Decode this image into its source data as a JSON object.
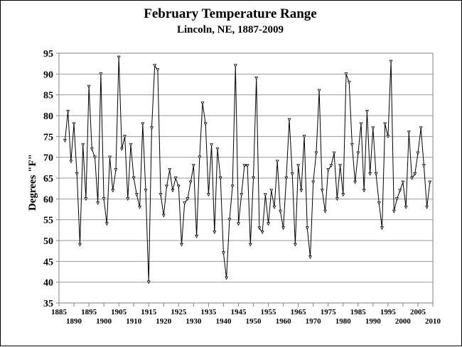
{
  "chart_data": {
    "type": "line",
    "title": "February Temperature Range",
    "subtitle": "Lincoln, NE, 1887-2009",
    "xlabel": "",
    "ylabel": "Degrees \"F\"",
    "xlim": [
      1885,
      2010
    ],
    "ylim": [
      35,
      95
    ],
    "grid": "horizontal",
    "yticks": [
      35,
      40,
      45,
      50,
      55,
      60,
      65,
      70,
      75,
      80,
      85,
      90,
      95
    ],
    "xticks_top_row": [
      1885,
      1895,
      1905,
      1915,
      1925,
      1935,
      1945,
      1955,
      1965,
      1975,
      1985,
      1995,
      2005
    ],
    "xticks_bottom_row": [
      1890,
      1900,
      1910,
      1920,
      1930,
      1940,
      1950,
      1960,
      1970,
      1980,
      1990,
      2000,
      2010
    ],
    "series": [
      {
        "color": "#000000",
        "x": [
          1887,
          1888,
          1889,
          1890,
          1891,
          1892,
          1893,
          1894,
          1895,
          1896,
          1897,
          1898,
          1899,
          1900,
          1901,
          1902,
          1903,
          1904,
          1905,
          1906,
          1907,
          1908,
          1909,
          1910,
          1911,
          1912,
          1913,
          1914,
          1915,
          1916,
          1917,
          1918,
          1919,
          1920,
          1921,
          1922,
          1923,
          1924,
          1925,
          1926,
          1927,
          1928,
          1929,
          1930,
          1931,
          1932,
          1933,
          1934,
          1935,
          1936,
          1937,
          1938,
          1939,
          1940,
          1941,
          1942,
          1943,
          1944,
          1945,
          1946,
          1947,
          1948,
          1949,
          1950,
          1951,
          1952,
          1953,
          1954,
          1955,
          1956,
          1957,
          1958,
          1959,
          1960,
          1961,
          1962,
          1963,
          1964,
          1965,
          1966,
          1967,
          1968,
          1969,
          1970,
          1971,
          1972,
          1973,
          1974,
          1975,
          1976,
          1977,
          1978,
          1979,
          1980,
          1981,
          1982,
          1983,
          1984,
          1985,
          1986,
          1987,
          1988,
          1989,
          1990,
          1991,
          1992,
          1993,
          1994,
          1995,
          1996,
          1997,
          1998,
          1999,
          2000,
          2001,
          2002,
          2003,
          2004,
          2005,
          2006,
          2007,
          2008,
          2009
        ],
        "values": [
          74,
          81,
          69,
          78,
          66,
          49,
          73,
          60,
          87,
          72,
          70,
          59,
          90,
          60,
          54,
          70,
          62,
          67,
          94,
          72,
          75,
          60,
          73,
          65,
          61,
          58,
          78,
          62,
          40,
          77,
          92,
          91,
          61,
          56,
          63,
          67,
          62,
          65,
          63,
          49,
          59,
          60,
          64,
          68,
          51,
          70,
          83,
          78,
          61,
          73,
          52,
          72,
          65,
          47,
          41,
          55,
          63,
          92,
          54,
          61,
          68,
          68,
          49,
          65,
          89,
          53,
          52,
          61,
          54,
          62,
          58,
          69,
          57,
          53,
          65,
          79,
          66,
          49,
          68,
          62,
          75,
          53,
          46,
          64,
          71,
          86,
          62,
          57,
          67,
          68,
          71,
          60,
          68,
          61,
          90,
          88,
          73,
          64,
          71,
          78,
          62,
          81,
          66,
          77,
          66,
          59,
          53,
          78,
          75,
          93,
          57,
          60,
          62,
          64,
          58,
          76,
          65,
          66,
          71,
          77,
          68,
          58,
          64
        ]
      }
    ]
  }
}
